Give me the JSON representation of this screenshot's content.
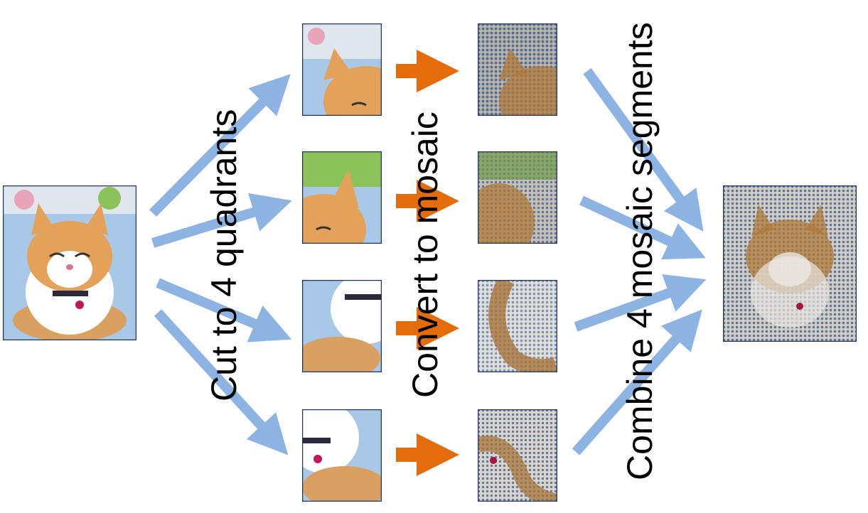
{
  "labels": {
    "cut": "Cut to 4 quadrants",
    "convert": "Convert to mosaic",
    "combine": "Combine 4 mosaic segments"
  },
  "colors": {
    "blue_arrow": "#8db3e2",
    "orange_arrow": "#e46c0a",
    "frame": "#1f3864"
  },
  "images": {
    "original": "cat-photo",
    "quadrants": [
      "top-left-quadrant",
      "top-right-quadrant",
      "bottom-left-quadrant",
      "bottom-right-quadrant"
    ],
    "mosaics": [
      "mosaic-top-left",
      "mosaic-top-right",
      "mosaic-bottom-left",
      "mosaic-bottom-right"
    ],
    "result": "combined-mosaic"
  }
}
